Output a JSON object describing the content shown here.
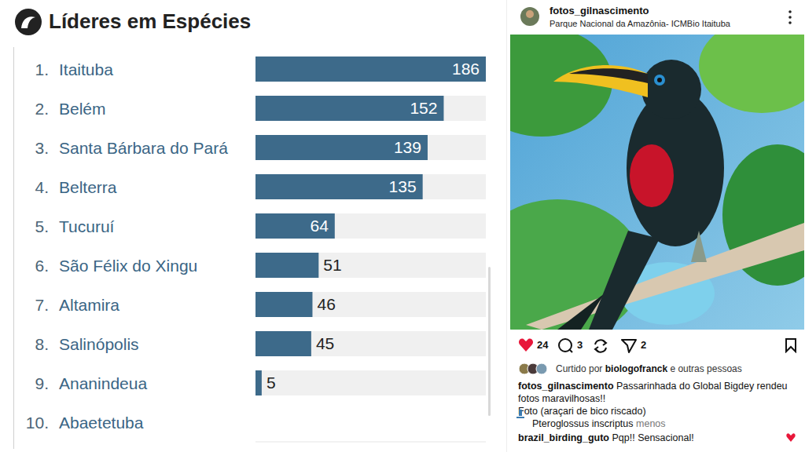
{
  "chart_data": {
    "type": "bar",
    "title": "Líderes em Espécies",
    "orientation": "horizontal",
    "ranks": [
      "1.",
      "2.",
      "3.",
      "4.",
      "5.",
      "6.",
      "7.",
      "8.",
      "9.",
      "10."
    ],
    "categories": [
      "Itaituba",
      "Belém",
      "Santa Bárbara do Pará",
      "Belterra",
      "Tucuruí",
      "São Félix do Xingu",
      "Altamira",
      "Salinópolis",
      "Ananindeua",
      "Abaetetuba"
    ],
    "values": [
      186,
      152,
      139,
      135,
      64,
      51,
      46,
      45,
      5,
      0
    ],
    "color": "#3d6a8a",
    "xlim": [
      0,
      186
    ],
    "data_labels": true,
    "tick_labels": "y",
    "grid": false
  },
  "post": {
    "user": "fotos_gilnascimento",
    "location": "Parque Nacional da Amazônia- ICMBio Itaituba",
    "likes": 24,
    "comments": 3,
    "shares": 2,
    "liked_by": {
      "prefix": "Curtido por",
      "user": "biologofranck",
      "suffix": "e outras pessoas"
    },
    "caption": {
      "user": "fotos_gilnascimento",
      "text": "Passarinhada do Global Bigdey rendeu fotos maravilhosas!!",
      "lines": [
        "Foto (araçari de bico riscado)",
        "Pteroglossus inscriptus"
      ],
      "more": "menos"
    },
    "comment": {
      "user": "brazil_birding_guto",
      "text": "Pqp!! Sensacional!"
    }
  }
}
